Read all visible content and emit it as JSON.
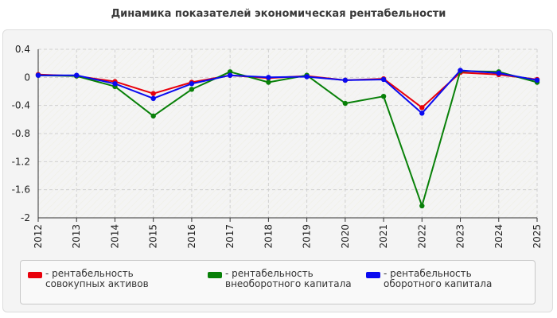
{
  "title": "Динамика показателей экономическая рентабельности",
  "chart_data": {
    "type": "line",
    "title": "Динамика показателей экономическая рентабельности",
    "xlabel": "",
    "ylabel": "",
    "x": [
      "2012",
      "2013",
      "2014",
      "2015",
      "2016",
      "2017",
      "2018",
      "2019",
      "2020",
      "2021",
      "2022",
      "2023",
      "2024",
      "2025"
    ],
    "ylim": [
      -2,
      0.4
    ],
    "yticks": [
      "0.4",
      "0",
      "-0.4",
      "-0.8",
      "-1.2",
      "-1.6",
      "-2"
    ],
    "ytick_values": [
      0.4,
      0,
      -0.4,
      -0.8,
      -1.2,
      -1.6,
      -2
    ],
    "grid": true,
    "legend_position": "bottom",
    "series": [
      {
        "name": "рентабельность совокупных активов",
        "color": "#e8000b",
        "values": [
          0.04,
          0.02,
          -0.06,
          -0.23,
          -0.07,
          0.03,
          -0.01,
          0.02,
          -0.04,
          -0.02,
          -0.43,
          0.07,
          0.04,
          -0.03
        ]
      },
      {
        "name": "рентабельность внеоборотного капитала",
        "color": "#088008",
        "values": [
          0.03,
          0.02,
          -0.13,
          -0.55,
          -0.17,
          0.08,
          -0.07,
          0.03,
          -0.37,
          -0.27,
          -1.83,
          0.09,
          0.08,
          -0.07
        ]
      },
      {
        "name": "рентабельность оборотного капитала",
        "color": "#0a0af0",
        "values": [
          0.03,
          0.03,
          -0.09,
          -0.3,
          -0.09,
          0.03,
          0.0,
          0.01,
          -0.04,
          -0.03,
          -0.51,
          0.1,
          0.06,
          -0.04
        ]
      }
    ]
  },
  "legend": {
    "items": [
      {
        "label": "- рентабельность совокупных активов",
        "color": "#e8000b"
      },
      {
        "label": "- рентабельность внеоборотного капитала",
        "color": "#088008"
      },
      {
        "label": "- рентабельность оборотного капитала",
        "color": "#0a0af0"
      }
    ]
  }
}
